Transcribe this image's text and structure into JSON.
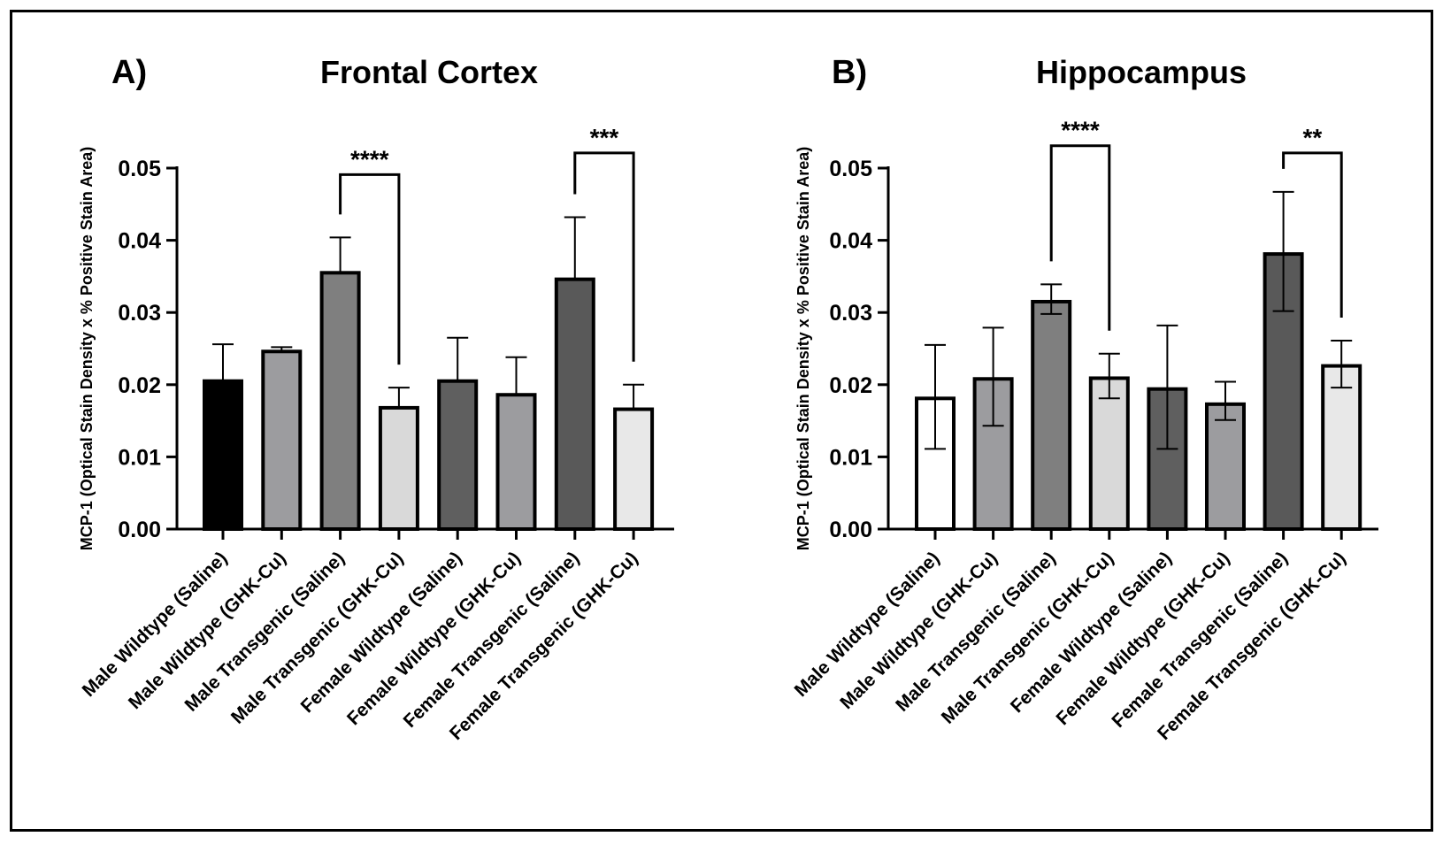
{
  "colors": {
    "male_wildtype_saline_frontal": "#000000",
    "male_wildtype_saline_hippocampus": "#ffffff",
    "wildtype_ghkcu": "#9c9c9f",
    "male_transgenic_saline": "#7f7f7f",
    "transgenic_ghkcu": "#d9d9d9",
    "female_wildtype_saline": "#5f5f5f",
    "female_transgenic_saline": "#595959",
    "female_transgenic_ghkcu": "#e8e8e8",
    "outline": "#000000"
  },
  "chart_data": [
    {
      "type": "bar",
      "panel_label": "A)",
      "title": "Frontal Cortex",
      "xlabel": "",
      "ylabel": "MCP-1 (Optical Stain Density x % Positive Stain Area)",
      "ylim": [
        0,
        0.05
      ],
      "yticks": [
        "0.00",
        "0.01",
        "0.02",
        "0.03",
        "0.04",
        "0.05"
      ],
      "grid": false,
      "categories": [
        "Male Wildtype (Saline)",
        "Male Wildtype (GHK-Cu)",
        "Male Transgenic (Saline)",
        "Male Transgenic (GHK-Cu)",
        "Female Wildtype (Saline)",
        "Female Wildtype (GHK-Cu)",
        "Female Transgenic (Saline)",
        "Female Transgenic (GHK-Cu)"
      ],
      "values": [
        0.0205,
        0.0246,
        0.0355,
        0.0168,
        0.0205,
        0.0186,
        0.0346,
        0.0166
      ],
      "error_upper": [
        0.0051,
        0.0006,
        0.0049,
        0.0028,
        0.006,
        0.0052,
        0.0086,
        0.0034
      ],
      "error_lower": [
        0,
        0,
        0,
        0,
        0,
        0,
        0,
        0
      ],
      "bar_colors": [
        "#000000",
        "#9c9c9f",
        "#7f7f7f",
        "#d9d9d9",
        "#5f5f5f",
        "#9c9c9f",
        "#595959",
        "#e8e8e8"
      ],
      "significance": [
        {
          "from": 2,
          "to": 3,
          "label": "****",
          "y": 0.0491
        },
        {
          "from": 6,
          "to": 7,
          "label": "***",
          "y": 0.0521
        }
      ]
    },
    {
      "type": "bar",
      "panel_label": "B)",
      "title": "Hippocampus",
      "xlabel": "",
      "ylabel": "MCP-1 (Optical Stain Density x % Positive Stain Area)",
      "ylim": [
        0,
        0.05
      ],
      "yticks": [
        "0.00",
        "0.01",
        "0.02",
        "0.03",
        "0.04",
        "0.05"
      ],
      "grid": false,
      "categories": [
        "Male Wildtype (Saline)",
        "Male Wildtype (GHK-Cu)",
        "Male Transgenic (Saline)",
        "Male Transgenic (GHK-Cu)",
        "Female Wildtype (Saline)",
        "Female Wildtype (GHK-Cu)",
        "Female Transgenic (Saline)",
        "Female Transgenic (GHK-Cu)"
      ],
      "values": [
        0.0181,
        0.0208,
        0.0315,
        0.0209,
        0.0194,
        0.0173,
        0.0381,
        0.0226
      ],
      "error_upper": [
        0.0074,
        0.0071,
        0.0024,
        0.0034,
        0.0088,
        0.0031,
        0.0086,
        0.0035
      ],
      "error_lower": [
        0.007,
        0.0065,
        0.0017,
        0.0028,
        0.0083,
        0.0022,
        0.0079,
        0.003
      ],
      "bar_colors": [
        "#ffffff",
        "#9c9c9f",
        "#7f7f7f",
        "#d9d9d9",
        "#5f5f5f",
        "#9c9c9f",
        "#595959",
        "#e8e8e8"
      ],
      "significance": [
        {
          "from": 2,
          "to": 3,
          "label": "****",
          "y": 0.0531
        },
        {
          "from": 6,
          "to": 7,
          "label": "**",
          "y": 0.0521
        }
      ]
    }
  ]
}
